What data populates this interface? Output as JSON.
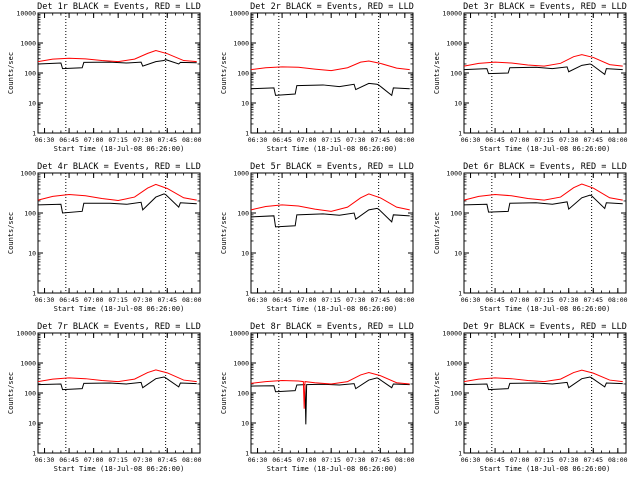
{
  "chart_data": [
    {
      "type": "line",
      "title": "Det 1r BLACK = Events, RED = LLD",
      "xlabel": "Start Time (18-Jul-08 06:26:00)",
      "ylabel": "Counts/sec",
      "ylim": [
        1,
        10000
      ],
      "yscale": "log",
      "xlim": [
        "06:26",
        "08:05"
      ],
      "x_ticks": [
        "06:30",
        "06:45",
        "07:00",
        "07:15",
        "07:30",
        "07:45",
        "08:00"
      ],
      "y_ticks": [
        "1",
        "10",
        "100",
        "1000",
        "10000"
      ],
      "vlines": [
        "06:43",
        "07:44"
      ],
      "series": [
        {
          "name": "Events",
          "color": "#000000",
          "x": [
            "06:26",
            "06:40",
            "06:41",
            "06:53",
            "06:54",
            "07:10",
            "07:20",
            "07:29",
            "07:30",
            "07:38",
            "07:43",
            "07:44",
            "07:52",
            "07:53",
            "08:03"
          ],
          "values": [
            200,
            215,
            140,
            150,
            225,
            230,
            215,
            230,
            170,
            240,
            260,
            280,
            200,
            225,
            220
          ]
        },
        {
          "name": "LLD",
          "color": "#ff0000",
          "x": [
            "06:26",
            "06:35",
            "06:45",
            "06:55",
            "07:05",
            "07:15",
            "07:25",
            "07:33",
            "07:38",
            "07:45",
            "07:55",
            "08:03"
          ],
          "values": [
            240,
            290,
            310,
            295,
            260,
            240,
            290,
            450,
            560,
            440,
            260,
            240
          ]
        }
      ]
    },
    {
      "type": "line",
      "title": "Det 2r BLACK = Events, RED = LLD",
      "xlabel": "Start Time (18-Jul-08 06:26:00)",
      "ylabel": "Counts/sec",
      "ylim": [
        1,
        10000
      ],
      "yscale": "log",
      "xlim": [
        "06:26",
        "08:05"
      ],
      "x_ticks": [
        "06:30",
        "06:45",
        "07:00",
        "07:15",
        "07:30",
        "07:45",
        "08:00"
      ],
      "y_ticks": [
        "1",
        "10",
        "100",
        "1000",
        "10000"
      ],
      "vlines": [
        "06:43",
        "07:44"
      ],
      "series": [
        {
          "name": "Events",
          "color": "#000000",
          "x": [
            "06:26",
            "06:40",
            "06:41",
            "06:53",
            "06:54",
            "07:10",
            "07:20",
            "07:29",
            "07:30",
            "07:38",
            "07:43",
            "07:44",
            "07:52",
            "07:53",
            "08:03"
          ],
          "values": [
            30,
            32,
            18,
            20,
            38,
            40,
            35,
            42,
            28,
            45,
            42,
            40,
            18,
            32,
            30
          ]
        },
        {
          "name": "LLD",
          "color": "#ff0000",
          "x": [
            "06:26",
            "06:35",
            "06:45",
            "06:55",
            "07:05",
            "07:15",
            "07:25",
            "07:33",
            "07:38",
            "07:45",
            "07:55",
            "08:03"
          ],
          "values": [
            130,
            150,
            160,
            155,
            135,
            120,
            150,
            230,
            250,
            210,
            145,
            130
          ]
        }
      ]
    },
    {
      "type": "line",
      "title": "Det 3r BLACK = Events, RED = LLD",
      "xlabel": "Start Time (18-Jul-08 06:26:00)",
      "ylabel": "Counts/sec",
      "ylim": [
        1,
        10000
      ],
      "yscale": "log",
      "xlim": [
        "06:26",
        "08:05"
      ],
      "x_ticks": [
        "06:30",
        "06:45",
        "07:00",
        "07:15",
        "07:30",
        "07:45",
        "08:00"
      ],
      "y_ticks": [
        "1",
        "10",
        "100",
        "1000",
        "10000"
      ],
      "vlines": [
        "06:43",
        "07:44"
      ],
      "series": [
        {
          "name": "Events",
          "color": "#000000",
          "x": [
            "06:26",
            "06:40",
            "06:41",
            "06:53",
            "06:54",
            "07:10",
            "07:20",
            "07:29",
            "07:30",
            "07:38",
            "07:43",
            "07:44",
            "07:52",
            "07:53",
            "08:03"
          ],
          "values": [
            130,
            140,
            95,
            100,
            150,
            155,
            140,
            160,
            110,
            180,
            200,
            190,
            90,
            140,
            130
          ]
        },
        {
          "name": "LLD",
          "color": "#ff0000",
          "x": [
            "06:26",
            "06:35",
            "06:45",
            "06:55",
            "07:05",
            "07:15",
            "07:25",
            "07:33",
            "07:38",
            "07:45",
            "07:55",
            "08:03"
          ],
          "values": [
            170,
            210,
            230,
            215,
            185,
            170,
            210,
            350,
            410,
            330,
            190,
            170
          ]
        }
      ]
    },
    {
      "type": "line",
      "title": "Det 4r BLACK = Events, RED = LLD",
      "xlabel": "Start Time (18-Jul-08 06:26:00)",
      "ylabel": "Counts/sec",
      "ylim": [
        1,
        1000
      ],
      "yscale": "log",
      "xlim": [
        "06:26",
        "08:05"
      ],
      "x_ticks": [
        "06:30",
        "06:45",
        "07:00",
        "07:15",
        "07:30",
        "07:45",
        "08:00"
      ],
      "y_ticks": [
        "1",
        "10",
        "100",
        "1000"
      ],
      "vlines": [
        "06:43",
        "07:44"
      ],
      "series": [
        {
          "name": "Events",
          "color": "#000000",
          "x": [
            "06:26",
            "06:40",
            "06:41",
            "06:53",
            "06:54",
            "07:10",
            "07:20",
            "07:29",
            "07:30",
            "07:38",
            "07:43",
            "07:44",
            "07:52",
            "07:53",
            "08:03"
          ],
          "values": [
            160,
            165,
            100,
            110,
            175,
            175,
            165,
            185,
            120,
            250,
            300,
            290,
            140,
            180,
            170
          ]
        },
        {
          "name": "LLD",
          "color": "#ff0000",
          "x": [
            "06:26",
            "06:35",
            "06:45",
            "06:55",
            "07:05",
            "07:15",
            "07:25",
            "07:33",
            "07:38",
            "07:45",
            "07:55",
            "08:03"
          ],
          "values": [
            210,
            260,
            290,
            270,
            230,
            205,
            250,
            420,
            520,
            410,
            240,
            210
          ]
        }
      ]
    },
    {
      "type": "line",
      "title": "Det 5r BLACK = Events, RED = LLD",
      "xlabel": "Start Time (18-Jul-08 06:26:00)",
      "ylabel": "Counts/sec",
      "ylim": [
        1,
        1000
      ],
      "yscale": "log",
      "xlim": [
        "06:26",
        "08:05"
      ],
      "x_ticks": [
        "06:30",
        "06:45",
        "07:00",
        "07:15",
        "07:30",
        "07:45",
        "08:00"
      ],
      "y_ticks": [
        "1",
        "10",
        "100",
        "1000"
      ],
      "vlines": [
        "06:43",
        "07:44"
      ],
      "series": [
        {
          "name": "Events",
          "color": "#000000",
          "x": [
            "06:26",
            "06:40",
            "06:41",
            "06:53",
            "06:54",
            "07:10",
            "07:20",
            "07:29",
            "07:30",
            "07:38",
            "07:43",
            "07:44",
            "07:52",
            "07:53",
            "08:03"
          ],
          "values": [
            80,
            85,
            45,
            48,
            90,
            95,
            88,
            100,
            70,
            120,
            130,
            125,
            60,
            90,
            85
          ]
        },
        {
          "name": "LLD",
          "color": "#ff0000",
          "x": [
            "06:26",
            "06:35",
            "06:45",
            "06:55",
            "07:05",
            "07:15",
            "07:25",
            "07:33",
            "07:38",
            "07:45",
            "07:55",
            "08:03"
          ],
          "values": [
            120,
            145,
            160,
            150,
            125,
            110,
            140,
            240,
            300,
            240,
            140,
            120
          ]
        }
      ]
    },
    {
      "type": "line",
      "title": "Det 6r BLACK = Events, RED = LLD",
      "xlabel": "Start Time (18-Jul-08 06:26:00)",
      "ylabel": "Counts/sec",
      "ylim": [
        1,
        1000
      ],
      "yscale": "log",
      "xlim": [
        "06:26",
        "08:05"
      ],
      "x_ticks": [
        "06:30",
        "06:45",
        "07:00",
        "07:15",
        "07:30",
        "07:45",
        "08:00"
      ],
      "y_ticks": [
        "1",
        "10",
        "100",
        "1000"
      ],
      "vlines": [
        "06:43",
        "07:44"
      ],
      "series": [
        {
          "name": "Events",
          "color": "#000000",
          "x": [
            "06:26",
            "06:40",
            "06:41",
            "06:53",
            "06:54",
            "07:10",
            "07:20",
            "07:29",
            "07:30",
            "07:38",
            "07:43",
            "07:44",
            "07:52",
            "07:53",
            "08:03"
          ],
          "values": [
            160,
            165,
            105,
            110,
            175,
            180,
            165,
            190,
            125,
            240,
            280,
            270,
            130,
            180,
            170
          ]
        },
        {
          "name": "LLD",
          "color": "#ff0000",
          "x": [
            "06:26",
            "06:35",
            "06:45",
            "06:55",
            "07:05",
            "07:15",
            "07:25",
            "07:33",
            "07:38",
            "07:45",
            "07:55",
            "08:03"
          ],
          "values": [
            210,
            260,
            290,
            270,
            230,
            210,
            250,
            430,
            530,
            420,
            240,
            210
          ]
        }
      ]
    },
    {
      "type": "line",
      "title": "Det 7r BLACK = Events, RED = LLD",
      "xlabel": "Start Time (18-Jul-08 06:26:00)",
      "ylabel": "Counts/sec",
      "ylim": [
        1,
        10000
      ],
      "yscale": "log",
      "xlim": [
        "06:26",
        "08:05"
      ],
      "x_ticks": [
        "06:30",
        "06:45",
        "07:00",
        "07:15",
        "07:30",
        "07:45",
        "08:00"
      ],
      "y_ticks": [
        "1",
        "10",
        "100",
        "1000",
        "10000"
      ],
      "vlines": [
        "06:43",
        "07:44"
      ],
      "series": [
        {
          "name": "Events",
          "color": "#000000",
          "x": [
            "06:26",
            "06:40",
            "06:41",
            "06:53",
            "06:54",
            "07:10",
            "07:20",
            "07:29",
            "07:30",
            "07:38",
            "07:43",
            "07:44",
            "07:52",
            "07:53",
            "08:03"
          ],
          "values": [
            190,
            200,
            130,
            140,
            210,
            215,
            200,
            225,
            150,
            300,
            340,
            320,
            160,
            215,
            205
          ]
        },
        {
          "name": "LLD",
          "color": "#ff0000",
          "x": [
            "06:26",
            "06:35",
            "06:45",
            "06:55",
            "07:05",
            "07:15",
            "07:25",
            "07:33",
            "07:38",
            "07:45",
            "07:55",
            "08:03"
          ],
          "values": [
            240,
            290,
            320,
            300,
            260,
            240,
            290,
            480,
            590,
            470,
            270,
            240
          ]
        }
      ]
    },
    {
      "type": "line",
      "title": "Det 8r BLACK = Events, RED = LLD",
      "xlabel": "Start Time (18-Jul-08 06:26:00)",
      "ylabel": "Counts/sec",
      "ylim": [
        1,
        10000
      ],
      "yscale": "log",
      "xlim": [
        "06:26",
        "08:05"
      ],
      "x_ticks": [
        "06:30",
        "06:45",
        "07:00",
        "07:15",
        "07:30",
        "07:45",
        "08:00"
      ],
      "y_ticks": [
        "1",
        "10",
        "100",
        "1000",
        "10000"
      ],
      "vlines": [
        "06:43",
        "07:44"
      ],
      "series": [
        {
          "name": "Events",
          "color": "#000000",
          "x": [
            "06:26",
            "06:40",
            "06:41",
            "06:53",
            "06:54",
            "06:59",
            "06:59.5",
            "07:00",
            "07:10",
            "07:20",
            "07:29",
            "07:30",
            "07:38",
            "07:43",
            "07:44",
            "07:52",
            "07:53",
            "08:03"
          ],
          "values": [
            170,
            175,
            110,
            120,
            185,
            190,
            9,
            190,
            195,
            185,
            205,
            140,
            270,
            320,
            300,
            150,
            200,
            190
          ]
        },
        {
          "name": "LLD",
          "color": "#ff0000",
          "x": [
            "06:26",
            "06:35",
            "06:45",
            "06:55",
            "06:58",
            "06:58.5",
            "06:59",
            "07:05",
            "07:15",
            "07:25",
            "07:33",
            "07:38",
            "07:45",
            "07:55",
            "08:03"
          ],
          "values": [
            210,
            240,
            260,
            250,
            240,
            30,
            240,
            220,
            200,
            240,
            400,
            480,
            380,
            220,
            200
          ]
        }
      ]
    },
    {
      "type": "line",
      "title": "Det 9r BLACK = Events, RED = LLD",
      "xlabel": "Start Time (18-Jul-08 06:26:00)",
      "ylabel": "Counts/sec",
      "ylim": [
        1,
        10000
      ],
      "yscale": "log",
      "xlim": [
        "06:26",
        "08:05"
      ],
      "x_ticks": [
        "06:30",
        "06:45",
        "07:00",
        "07:15",
        "07:30",
        "07:45",
        "08:00"
      ],
      "y_ticks": [
        "1",
        "10",
        "100",
        "1000",
        "10000"
      ],
      "vlines": [
        "06:43",
        "07:44"
      ],
      "series": [
        {
          "name": "Events",
          "color": "#000000",
          "x": [
            "06:26",
            "06:40",
            "06:41",
            "06:53",
            "06:54",
            "07:10",
            "07:20",
            "07:29",
            "07:30",
            "07:38",
            "07:43",
            "07:44",
            "07:52",
            "07:53",
            "08:03"
          ],
          "values": [
            190,
            200,
            130,
            140,
            210,
            215,
            200,
            225,
            150,
            300,
            340,
            320,
            160,
            215,
            205
          ]
        },
        {
          "name": "LLD",
          "color": "#ff0000",
          "x": [
            "06:26",
            "06:35",
            "06:45",
            "06:55",
            "07:05",
            "07:15",
            "07:25",
            "07:33",
            "07:38",
            "07:45",
            "07:55",
            "08:03"
          ],
          "values": [
            240,
            290,
            320,
            300,
            260,
            240,
            290,
            480,
            580,
            460,
            270,
            240
          ]
        }
      ]
    }
  ]
}
